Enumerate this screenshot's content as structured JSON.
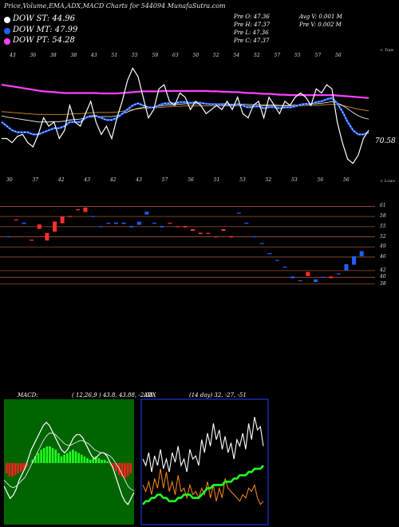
{
  "header": {
    "title": "Price,Volume,EMA,ADX,MACD Charts for 544094  MunafaSutra.com"
  },
  "legend": [
    {
      "label": "DOW ST: 44.96",
      "color": "#ffffff"
    },
    {
      "label": "DOW MT: 47.99",
      "color": "#2060ff"
    },
    {
      "label": "DOW PT: 54.28",
      "color": "#ff40ff"
    }
  ],
  "info": {
    "c1": [
      "Pre  O: 47.36",
      "Pre  H: 47.37",
      "Pre  L: 47.36",
      "Pre  C: 47.37"
    ],
    "c2": [
      "Avg V: 0.001 M",
      "Pre  V: 0.002  M"
    ]
  },
  "colors": {
    "bg": "#000000",
    "up": "#2060ff",
    "down": "#ff3030",
    "grid": "#a0522d",
    "macd_panel": "#006400",
    "adx_border": "#2040ff"
  },
  "chart_data": [
    {
      "type": "line",
      "name": "price-ema",
      "y_axis_label": "70.58",
      "upper_label": "< Tops",
      "lower_label": "< Lows",
      "top_ticks": [
        "43",
        "36",
        "38",
        "38",
        "43",
        "51",
        "55",
        "59",
        "63",
        "50",
        "52",
        "54",
        "52",
        "57",
        "55",
        "57",
        "56"
      ],
      "bottom_ticks": [
        "30",
        "37",
        "42",
        "43",
        "42",
        "43",
        "57",
        "56",
        "51",
        "53",
        "52",
        "53",
        "56",
        "56"
      ],
      "close": [
        44,
        44,
        43,
        44.5,
        45,
        43,
        42,
        45,
        49,
        47,
        48,
        44,
        46,
        52,
        48,
        47,
        50,
        53,
        48,
        45,
        47,
        44,
        49,
        53,
        58,
        61,
        59,
        54,
        49,
        51,
        56,
        57,
        53,
        52,
        55,
        54,
        51,
        53,
        52,
        50,
        51,
        52,
        51,
        53,
        51,
        54,
        50,
        49,
        52,
        53,
        49,
        54,
        52,
        50,
        53,
        52,
        54,
        55,
        54,
        52,
        56,
        55,
        57,
        56,
        48,
        43,
        39,
        38,
        40,
        44,
        46
      ],
      "ema_fast": [
        48,
        47,
        46,
        45.5,
        45.5,
        45.5,
        45,
        45,
        45.5,
        46,
        46.5,
        46.5,
        47,
        48,
        48,
        48,
        49,
        49.5,
        49.5,
        49,
        48.5,
        48.5,
        49,
        50,
        51,
        52,
        52.5,
        52,
        51.5,
        51.5,
        52,
        52.5,
        52.5,
        52.5,
        52.8,
        52.8,
        52.6,
        52.7,
        52.6,
        52.4,
        52.3,
        52.3,
        52.1,
        52.2,
        52,
        52.3,
        52,
        51.5,
        51.7,
        51.8,
        51.3,
        51.6,
        51.6,
        51.3,
        51.5,
        51.5,
        51.8,
        52.2,
        52.4,
        52.3,
        52.8,
        53,
        53.5,
        53.8,
        52.5,
        50.5,
        48,
        46,
        45,
        45,
        45.5
      ],
      "ema_mid": [
        49.5,
        49.2,
        49,
        48.8,
        48.6,
        48.4,
        48.2,
        48,
        48,
        48,
        48.1,
        48.1,
        48.2,
        48.5,
        48.6,
        48.7,
        49,
        49.2,
        49.3,
        49.3,
        49.3,
        49.3,
        49.5,
        49.9,
        50.4,
        50.9,
        51.3,
        51.5,
        51.5,
        51.6,
        51.8,
        52,
        52.1,
        52.2,
        52.3,
        52.4,
        52.4,
        52.4,
        52.4,
        52.4,
        52.4,
        52.4,
        52.4,
        52.4,
        52.3,
        52.4,
        52.3,
        52.2,
        52.2,
        52.2,
        52.1,
        52.1,
        52.1,
        52,
        52,
        52,
        52.1,
        52.2,
        52.3,
        52.3,
        52.4,
        52.5,
        52.7,
        52.9,
        52.6,
        52,
        51.2,
        50.3,
        49.5,
        49,
        48.7
      ],
      "ema_slow": [
        50.5,
        50.4,
        50.3,
        50.2,
        50.1,
        50,
        49.9,
        49.8,
        49.8,
        49.8,
        49.8,
        49.8,
        49.8,
        49.9,
        50,
        50,
        50.1,
        50.2,
        50.3,
        50.3,
        50.3,
        50.3,
        50.4,
        50.6,
        50.8,
        51,
        51.2,
        51.3,
        51.3,
        51.4,
        51.5,
        51.6,
        51.7,
        51.8,
        51.8,
        51.9,
        51.9,
        51.9,
        51.9,
        51.9,
        51.9,
        51.9,
        51.9,
        51.9,
        51.9,
        51.9,
        51.9,
        51.9,
        51.9,
        51.9,
        51.9,
        51.9,
        51.9,
        51.9,
        51.9,
        51.9,
        51.9,
        51.9,
        52,
        52,
        52,
        52.1,
        52.2,
        52.3,
        52.2,
        52,
        51.7,
        51.4,
        51.1,
        50.9,
        50.7
      ],
      "ema_pt": [
        57,
        56.8,
        56.6,
        56.4,
        56.2,
        56,
        55.8,
        55.6,
        55.4,
        55.3,
        55.2,
        55.1,
        55,
        55,
        55,
        55,
        55,
        55,
        55,
        54.9,
        54.9,
        54.9,
        54.9,
        55,
        55.1,
        55.2,
        55.3,
        55.4,
        55.4,
        55.4,
        55.4,
        55.5,
        55.5,
        55.5,
        55.5,
        55.5,
        55.5,
        55.5,
        55.5,
        55.5,
        55.4,
        55.4,
        55.3,
        55.3,
        55.2,
        55.2,
        55.1,
        55,
        55,
        54.9,
        54.8,
        54.8,
        54.7,
        54.6,
        54.6,
        54.5,
        54.5,
        54.5,
        54.5,
        54.5,
        54.5,
        54.5,
        54.5,
        54.5,
        54.4,
        54.3,
        54.2,
        54.1,
        54,
        53.9,
        53.8
      ],
      "ylim": [
        36,
        63
      ]
    },
    {
      "type": "bar",
      "name": "volume-profile",
      "y_ticks": [
        "61",
        "58",
        "55",
        "52",
        "49",
        "46",
        "42",
        "40",
        "38"
      ],
      "candles": [
        {
          "x": 0.5,
          "y": 52,
          "h": 0.3,
          "d": "up"
        },
        {
          "x": 1.5,
          "y": 57,
          "h": 0.3,
          "d": "down"
        },
        {
          "x": 2.5,
          "y": 56,
          "h": 0.4,
          "d": "up"
        },
        {
          "x": 3.5,
          "y": 51,
          "h": 0.3,
          "d": "down"
        },
        {
          "x": 4.5,
          "y": 55,
          "h": 1.3,
          "d": "down"
        },
        {
          "x": 5.5,
          "y": 52,
          "h": 2.2,
          "d": "down"
        },
        {
          "x": 6.5,
          "y": 55,
          "h": 3.0,
          "d": "down"
        },
        {
          "x": 7.5,
          "y": 57,
          "h": 2.0,
          "d": "down"
        },
        {
          "x": 8.5,
          "y": 58,
          "h": 0.3,
          "d": "down"
        },
        {
          "x": 9.5,
          "y": 60,
          "h": 0.3,
          "d": "down"
        },
        {
          "x": 10.5,
          "y": 60,
          "h": 1.3,
          "d": "down"
        },
        {
          "x": 11.5,
          "y": 58,
          "h": 0.3,
          "d": "up"
        },
        {
          "x": 12.5,
          "y": 55,
          "h": 0.3,
          "d": "up"
        },
        {
          "x": 13.5,
          "y": 56,
          "h": 0.3,
          "d": "up"
        },
        {
          "x": 14.5,
          "y": 56,
          "h": 0.4,
          "d": "up"
        },
        {
          "x": 15.5,
          "y": 56,
          "h": 0.4,
          "d": "up"
        },
        {
          "x": 16.5,
          "y": 55,
          "h": 0.4,
          "d": "up"
        },
        {
          "x": 17.5,
          "y": 56,
          "h": 0.9,
          "d": "up"
        },
        {
          "x": 18.5,
          "y": 59,
          "h": 0.8,
          "d": "up"
        },
        {
          "x": 19.5,
          "y": 56,
          "h": 0.3,
          "d": "up"
        },
        {
          "x": 20.5,
          "y": 55,
          "h": 0.4,
          "d": "up"
        },
        {
          "x": 21.5,
          "y": 56,
          "h": 0.3,
          "d": "down"
        },
        {
          "x": 22.5,
          "y": 55,
          "h": 0.3,
          "d": "down"
        },
        {
          "x": 23.5,
          "y": 55,
          "h": 0.4,
          "d": "down"
        },
        {
          "x": 24.5,
          "y": 54,
          "h": 0.5,
          "d": "down"
        },
        {
          "x": 25.5,
          "y": 53,
          "h": 0.4,
          "d": "down"
        },
        {
          "x": 26.5,
          "y": 53,
          "h": 0.3,
          "d": "down"
        },
        {
          "x": 27.5,
          "y": 52,
          "h": 0.3,
          "d": "down"
        },
        {
          "x": 28.5,
          "y": 54,
          "h": 0.5,
          "d": "down"
        },
        {
          "x": 29.5,
          "y": 52,
          "h": 0.4,
          "d": "down"
        },
        {
          "x": 30.5,
          "y": 59,
          "h": 0.3,
          "d": "up"
        },
        {
          "x": 31.5,
          "y": 56,
          "h": 0.3,
          "d": "up"
        },
        {
          "x": 32.5,
          "y": 52,
          "h": 0.3,
          "d": "up"
        },
        {
          "x": 33.5,
          "y": 50,
          "h": 0.3,
          "d": "up"
        },
        {
          "x": 34.5,
          "y": 47,
          "h": 0.3,
          "d": "up"
        },
        {
          "x": 35.5,
          "y": 45,
          "h": 0.3,
          "d": "up"
        },
        {
          "x": 36.5,
          "y": 43,
          "h": 0.3,
          "d": "up"
        },
        {
          "x": 37.5,
          "y": 40,
          "h": 0.5,
          "d": "up"
        },
        {
          "x": 38.5,
          "y": 39,
          "h": 0.3,
          "d": "up"
        },
        {
          "x": 39.5,
          "y": 41,
          "h": 1.2,
          "d": "down"
        },
        {
          "x": 40.5,
          "y": 39,
          "h": 0.8,
          "d": "up"
        },
        {
          "x": 41.5,
          "y": 40,
          "h": 0.3,
          "d": "up"
        },
        {
          "x": 42.5,
          "y": 40,
          "h": 0.5,
          "d": "down"
        },
        {
          "x": 43.5,
          "y": 41,
          "h": 0.3,
          "d": "up"
        },
        {
          "x": 44.5,
          "y": 43,
          "h": 1.8,
          "d": "up"
        },
        {
          "x": 45.5,
          "y": 45,
          "h": 2.5,
          "d": "up"
        },
        {
          "x": 46.5,
          "y": 47,
          "h": 1.5,
          "d": "up"
        }
      ],
      "ylim": [
        37,
        63
      ]
    },
    {
      "type": "area",
      "name": "macd",
      "title": "MACD:",
      "params": "( 12,26,9 ) 43.8, 43.88, -2.08",
      "histogram": [
        -3,
        -4,
        -4,
        -3.5,
        -3,
        -2.5,
        -2,
        -1,
        0,
        1,
        2,
        3,
        4,
        4.5,
        5,
        5,
        4.5,
        4,
        3,
        2,
        2.5,
        3,
        3.5,
        4,
        3.5,
        3,
        2.5,
        2,
        1.5,
        1,
        1.5,
        2,
        1.5,
        1,
        1,
        0.5,
        -0.5,
        -1.5,
        -2.5,
        -3.5,
        -4,
        -4.5,
        -4,
        -3
      ],
      "macd": [
        -8,
        -10,
        -12,
        -11,
        -9,
        -6,
        -4,
        -2,
        1,
        4,
        6,
        8,
        10,
        12,
        13,
        12,
        10,
        8,
        6,
        4,
        3,
        4,
        6,
        8,
        9,
        9,
        8,
        6,
        4,
        2,
        1,
        2,
        3,
        3,
        2,
        0,
        -2,
        -5,
        -8,
        -11,
        -13,
        -14,
        -12,
        -10
      ],
      "signal": [
        -6,
        -7,
        -8,
        -8.5,
        -8,
        -7,
        -6,
        -5,
        -3,
        -1,
        1,
        3,
        5,
        7,
        8.5,
        9.5,
        9.5,
        9,
        8,
        7,
        6,
        5.5,
        5.5,
        6,
        6.5,
        7,
        7,
        6.5,
        6,
        5,
        4,
        3.5,
        3,
        3,
        2.5,
        2,
        1,
        -0.5,
        -2,
        -4,
        -6,
        -8,
        -9,
        -9.5
      ]
    },
    {
      "type": "line",
      "name": "adx",
      "title": "ADX",
      "params": "(14  day) 32,  -27,  -51",
      "plus_di": [
        24,
        22,
        26,
        20,
        25,
        22,
        27,
        21,
        24,
        20,
        26,
        23,
        28,
        22,
        24,
        20,
        27,
        24,
        25,
        22,
        30,
        26,
        32,
        28,
        35,
        30,
        33,
        27,
        31,
        26,
        29,
        24,
        30,
        28,
        32,
        27,
        35,
        30,
        37,
        33,
        34,
        28
      ],
      "minus_di": [
        16,
        14,
        17,
        13,
        18,
        15,
        21,
        15,
        20,
        14,
        17,
        13,
        19,
        14,
        15,
        12,
        16,
        13,
        14,
        12,
        15,
        13,
        17,
        12,
        16,
        11,
        15,
        12,
        18,
        15,
        14,
        13,
        12,
        11,
        13,
        12,
        15,
        14,
        16,
        12,
        10,
        11
      ],
      "adx": [
        10,
        11,
        11,
        12,
        12,
        13,
        13,
        12,
        12,
        11,
        11,
        11,
        12,
        12,
        13,
        13,
        13,
        12,
        12,
        12,
        13,
        14,
        15,
        15,
        16,
        16,
        16,
        16,
        17,
        17,
        17,
        18,
        18,
        19,
        19,
        19,
        20,
        20,
        21,
        21,
        21,
        22
      ]
    }
  ]
}
